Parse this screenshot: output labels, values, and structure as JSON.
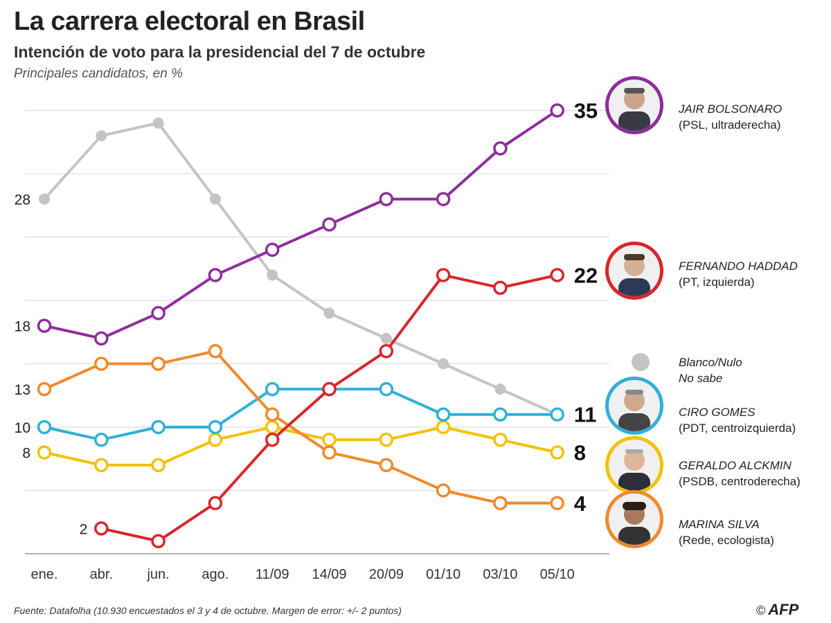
{
  "header": {
    "title": "La carrera electoral en Brasil",
    "subtitle": "Intención de voto para la presidencial del 7 de octubre",
    "note": "Principales candidatos, en %"
  },
  "footer": {
    "source": "Fuente: Datafolha (10.930 encuestados el 3 y 4 de octubre. Margen de error: +/- 2 puntos)",
    "copyright": "©",
    "logo": "AFP"
  },
  "legend": {
    "bolsonaro": {
      "name": "JAIR BOLSONARO",
      "party": "(PSL, ultraderecha)"
    },
    "haddad": {
      "name": "FERNANDO HADDAD",
      "party": "(PT, izquierda)"
    },
    "blanco": {
      "name": "Blanco/Nulo",
      "party": "No sabe"
    },
    "ciro": {
      "name": "CIRO GOMES",
      "party": "(PDT, centroizquierda)"
    },
    "alckmin": {
      "name": "GERALDO ALCKMIN",
      "party": "(PSDB, centroderecha)"
    },
    "marina": {
      "name": "MARINA SILVA",
      "party": "(Rede, ecologista)"
    }
  },
  "chart_data": {
    "type": "line",
    "title": "La carrera electoral en Brasil",
    "subtitle": "Intención de voto para la presidencial del 7 de octubre",
    "ylabel": "Principales candidatos, en %",
    "categories": [
      "ene.",
      "abr.",
      "jun.",
      "ago.",
      "11/09",
      "14/09",
      "20/09",
      "01/10",
      "03/10",
      "05/10"
    ],
    "ylim": [
      0,
      37
    ],
    "grid": true,
    "series": [
      {
        "key": "blanco",
        "name": "Blanco/Nulo / No sabe",
        "color": "#c4c4c4",
        "marker": "filled",
        "values": [
          28,
          33,
          34,
          28,
          22,
          19,
          17,
          15,
          13,
          11
        ]
      },
      {
        "key": "bolsonaro",
        "name": "JAIR BOLSONARO",
        "color": "#8e2d9b",
        "marker": "ring",
        "values": [
          18,
          17,
          19,
          22,
          24,
          26,
          28,
          28,
          32,
          35
        ],
        "start_label": "18",
        "end_label": "35"
      },
      {
        "key": "alckmin",
        "name": "GERALDO ALCKMIN",
        "color": "#f2c200",
        "marker": "ring",
        "values": [
          8,
          7,
          7,
          9,
          10,
          9,
          9,
          10,
          9,
          8
        ],
        "start_label": "8",
        "end_label": "8"
      },
      {
        "key": "ciro",
        "name": "CIRO GOMES",
        "color": "#2fb0d8",
        "marker": "ring",
        "values": [
          10,
          9,
          10,
          10,
          13,
          13,
          13,
          11,
          11,
          11
        ],
        "start_label": "10",
        "end_label": "11"
      },
      {
        "key": "marina",
        "name": "MARINA SILVA",
        "color": "#ee8a2c",
        "marker": "ring",
        "values": [
          13,
          15,
          15,
          16,
          11,
          8,
          7,
          5,
          4,
          4
        ],
        "start_label": "13",
        "end_label": "4"
      },
      {
        "key": "haddad",
        "name": "FERNANDO HADDAD",
        "color": "#d8262b",
        "marker": "ring",
        "values": [
          null,
          2,
          1,
          4,
          9,
          13,
          16,
          22,
          21,
          22
        ],
        "start_label": "2",
        "end_label": "22"
      }
    ],
    "extra_labels": [
      "28"
    ]
  }
}
